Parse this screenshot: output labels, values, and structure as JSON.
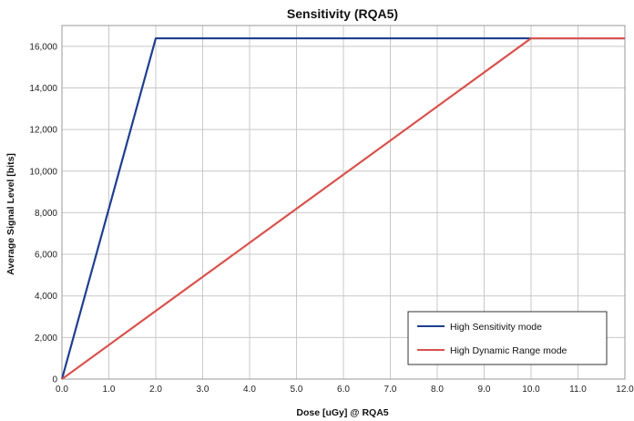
{
  "chart_data": {
    "type": "line",
    "title": "Sensitivity (RQA5)",
    "xlabel": "Dose [uGy] @ RQA5",
    "ylabel": "Average Signal Level [bits]",
    "xlim": [
      0,
      12
    ],
    "ylim": [
      0,
      17000
    ],
    "x_ticks": [
      "0.0",
      "1.0",
      "2.0",
      "3.0",
      "4.0",
      "5.0",
      "6.0",
      "7.0",
      "8.0",
      "9.0",
      "10.0",
      "11.0",
      "12.0"
    ],
    "y_ticks": [
      "0",
      "2,000",
      "4,000",
      "6,000",
      "8,000",
      "10,000",
      "12,000",
      "14,000",
      "16,000"
    ],
    "grid": true,
    "legend_position": "bottom-right",
    "series": [
      {
        "name": "High Sensitivity mode",
        "color": "#1f3f8f",
        "x": [
          0,
          2.0,
          12.0
        ],
        "y": [
          0,
          16384,
          16384
        ]
      },
      {
        "name": "High Dynamic Range mode",
        "color": "#d9534f",
        "x": [
          0,
          10.0,
          12.0
        ],
        "y": [
          0,
          16384,
          16384
        ]
      }
    ]
  }
}
